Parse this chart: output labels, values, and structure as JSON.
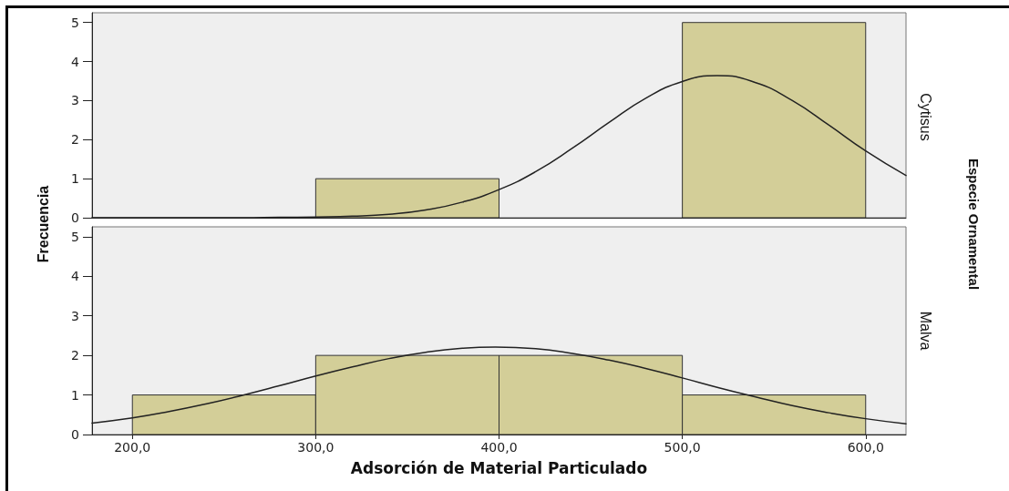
{
  "chart_data": [
    {
      "type": "histogram",
      "ylabel": "Frecuencia",
      "annotations": [
        "Cytisus",
        "Especie Ornamental"
      ],
      "bins": [
        200,
        300,
        400,
        500,
        600
      ],
      "values": [
        0,
        1,
        0,
        5
      ],
      "color": "#d3ce98",
      "series": [
        {
          "type": "line",
          "color": "#222222",
          "x": [
            178,
            200,
            220,
            240,
            260,
            280,
            300,
            320,
            340,
            360,
            380,
            400,
            420,
            440,
            460,
            480,
            500,
            519,
            540,
            560,
            580,
            600,
            622
          ],
          "values": [
            0,
            0,
            0,
            0,
            0,
            0.01,
            0.02,
            0.04,
            0.09,
            0.2,
            0.4,
            0.72,
            1.18,
            1.78,
            2.44,
            3.06,
            3.49,
            3.64,
            3.46,
            3.0,
            2.37,
            1.71,
            1.08
          ]
        }
      ],
      "xlim": [
        178,
        622
      ],
      "ylim": [
        0,
        5.25
      ],
      "yticks": [
        0,
        1,
        2,
        3,
        4,
        5
      ],
      "tick_labels": "y"
    },
    {
      "type": "histogram",
      "xlabel": "Adsorción de Material Particulado",
      "annotations": [
        "Malva"
      ],
      "bins": [
        200,
        300,
        400,
        500,
        600
      ],
      "values": [
        1,
        2,
        2,
        1
      ],
      "color": "#d3ce98",
      "series": [
        {
          "type": "line",
          "color": "#222222",
          "x": [
            178,
            200,
            220,
            240,
            260,
            280,
            300,
            320,
            340,
            360,
            380,
            398,
            420,
            440,
            460,
            480,
            500,
            520,
            540,
            560,
            580,
            600,
            622
          ],
          "values": [
            0.29,
            0.42,
            0.58,
            0.77,
            0.99,
            1.23,
            1.48,
            1.71,
            1.92,
            2.08,
            2.18,
            2.21,
            2.17,
            2.05,
            1.88,
            1.67,
            1.43,
            1.18,
            0.95,
            0.73,
            0.55,
            0.4,
            0.27
          ]
        }
      ],
      "xlim": [
        178,
        622
      ],
      "xticks": [
        {
          "value": 200,
          "label": "200,0"
        },
        {
          "value": 300,
          "label": "300,0"
        },
        {
          "value": 400,
          "label": "400,0"
        },
        {
          "value": 500,
          "label": "500,0"
        },
        {
          "value": 600,
          "label": "600,0"
        }
      ],
      "ylim": [
        0,
        5.25
      ],
      "yticks": [
        0,
        1,
        2,
        3,
        4,
        5
      ]
    }
  ]
}
